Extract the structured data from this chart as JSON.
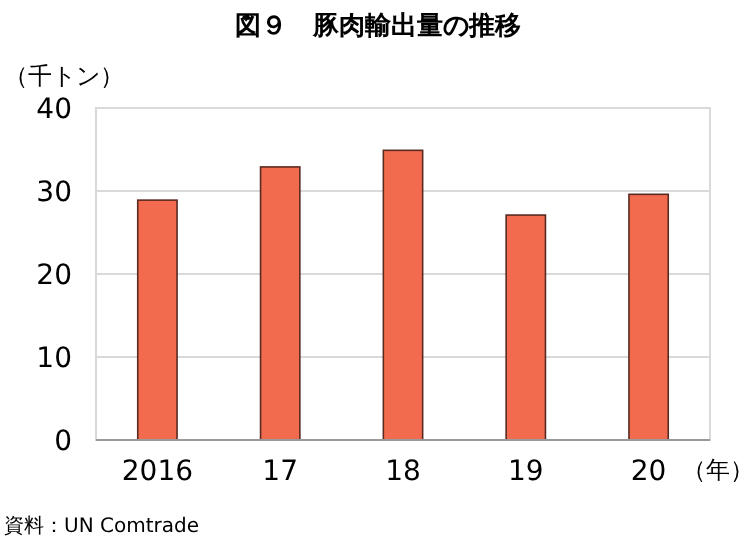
{
  "chart_data": {
    "type": "bar",
    "title": "図９　豚肉輸出量の推移",
    "ylabel": "（千トン）",
    "xlabel": "（年）",
    "categories": [
      "2016",
      "17",
      "18",
      "19",
      "20"
    ],
    "values": [
      28.9,
      32.9,
      34.9,
      27.1,
      29.6
    ],
    "color": "#f26b4f",
    "ylim": [
      0,
      40
    ],
    "yticks": [
      0,
      10,
      20,
      30,
      40
    ],
    "grid": "y",
    "annotations": [
      "資料：UN Comtrade"
    ]
  }
}
